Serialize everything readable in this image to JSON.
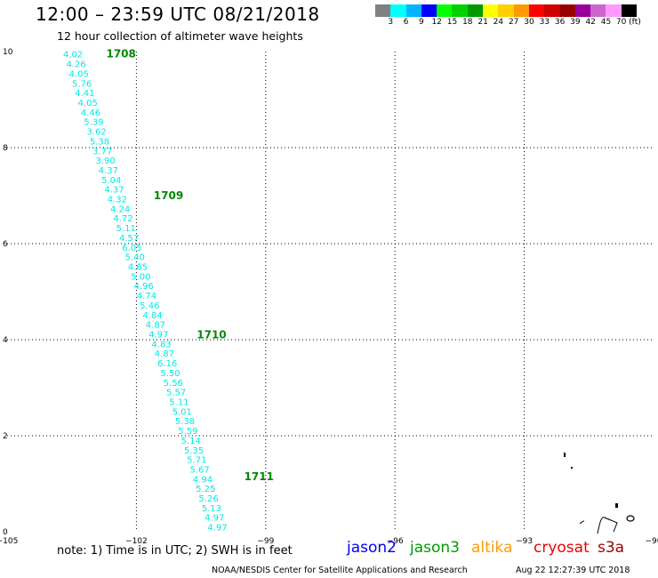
{
  "header": {
    "title": "12:00 – 23:59 UTC 08/21/2018",
    "subtitle": "12 hour collection of altimeter wave heights"
  },
  "legend": {
    "colors": [
      "#808080",
      "#00ffff",
      "#00b4ff",
      "#0000ff",
      "#00ff00",
      "#00d000",
      "#009900",
      "#ffff00",
      "#ffd000",
      "#ff9900",
      "#ff0000",
      "#cc0000",
      "#990000",
      "#990099",
      "#cc66cc",
      "#ff99ff",
      "#000000"
    ],
    "labels": [
      "3",
      "6",
      "9",
      "12",
      "15",
      "18",
      "21",
      "24",
      "27",
      "30",
      "33",
      "36",
      "39",
      "42",
      "45",
      "70 (ft)"
    ]
  },
  "map": {
    "xlim": [
      -105,
      -90
    ],
    "ylim": [
      0,
      10
    ],
    "x_ticks": [
      -105,
      -102,
      -99,
      -96,
      -93,
      -90
    ],
    "x_tick_labels": [
      "−105",
      "−102",
      "−99",
      "−96",
      "−93",
      "−90"
    ],
    "y_ticks": [
      0,
      2,
      4,
      6,
      8,
      10
    ],
    "y_tick_labels": [
      "0",
      "2",
      "4",
      "6",
      "8",
      "10"
    ],
    "grid": true,
    "wave_color": "#00e8e8",
    "time_color": "#008800",
    "wave_heights": [
      "4.02",
      "4.26",
      "4.05",
      "5.76",
      "4.41",
      "4.05",
      "4.46",
      "5.39",
      "3.62",
      "5.38",
      "3.77",
      "3.90",
      "4.37",
      "5.04",
      "4.37",
      "4.32",
      "4.24",
      "4.72",
      "5.11",
      "4.57",
      "6.05",
      "5.40",
      "4.65",
      "5.00",
      "4.96",
      "4.74",
      "5.46",
      "4.84",
      "4.87",
      "4.97",
      "4.83",
      "4.87",
      "6.16",
      "5.50",
      "5.56",
      "5.57",
      "5.11",
      "5.01",
      "5.38",
      "5.59",
      "5.14",
      "5.35",
      "5.71",
      "5.67",
      "4.94",
      "5.25",
      "5.26",
      "5.13",
      "4.97",
      "4.97"
    ],
    "track_start": [
      -103.7,
      9.95
    ],
    "track_end": [
      -100.35,
      0.1
    ],
    "time_labels": [
      {
        "text": "1708",
        "lon": -102.7,
        "lat": 9.95
      },
      {
        "text": "1709",
        "lon": -101.6,
        "lat": 7.0
      },
      {
        "text": "1710",
        "lon": -100.6,
        "lat": 4.1
      },
      {
        "text": "1711",
        "lon": -99.5,
        "lat": 1.15
      }
    ]
  },
  "footer": {
    "note": "note: 1) Time is in UTC; 2) SWH is in feet",
    "satellites": [
      {
        "name": "jason2",
        "color": "#0000ee"
      },
      {
        "name": "jason3",
        "color": "#009900"
      },
      {
        "name": "altika",
        "color": "#ff9900"
      },
      {
        "name": "cryosat",
        "color": "#ee0000"
      },
      {
        "name": "s3a",
        "color": "#990000"
      }
    ],
    "credit": "NOAA/NESDIS Center for Satellite Applications and Research",
    "timestamp": "Aug 22 12:27:39 UTC 2018"
  }
}
